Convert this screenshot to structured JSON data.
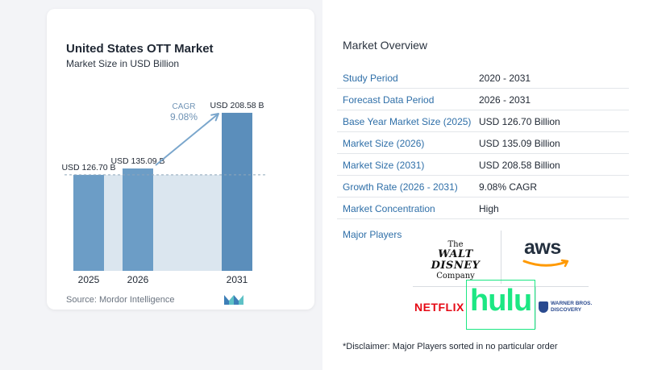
{
  "chart": {
    "title": "United States OTT Market",
    "subtitle": "Market Size in USD Billion",
    "source": "Source:  Mordor Intelligence",
    "cagr_label": "CAGR",
    "cagr_value": "9.08%"
  },
  "chart_data": {
    "type": "bar",
    "title": "United States OTT Market",
    "subtitle": "Market Size in USD Billion",
    "categories": [
      "2025",
      "2026",
      "2031"
    ],
    "values": [
      126.7,
      135.09,
      208.58
    ],
    "data_labels": [
      "USD 126.70 B",
      "USD 135.09 B",
      "USD 208.58 B"
    ],
    "annotations": [
      {
        "text": "CAGR",
        "value": "9.08%"
      }
    ],
    "colors": {
      "bar": "#6c9dc6",
      "bar_last": "#5b8ebb",
      "band": "#dbe6ef",
      "arrow": "#7aa6cc",
      "cagr_text": "#6f93b5"
    }
  },
  "overview": {
    "title": "Market Overview",
    "rows": [
      {
        "key": "Study Period",
        "value": "2020 - 2031"
      },
      {
        "key": "Forecast Data Period",
        "value": "2026 - 2031"
      },
      {
        "key": "Base Year Market Size (2025)",
        "value": "USD 126.70 Billion"
      },
      {
        "key": "Market Size (2026)",
        "value": "USD 135.09 Billion"
      },
      {
        "key": "Market Size (2031)",
        "value": "USD 208.58 Billion"
      },
      {
        "key": "Growth Rate (2026 - 2031)",
        "value": "9.08% CAGR"
      },
      {
        "key": "Market Concentration",
        "value": "High"
      }
    ]
  },
  "players": {
    "label": "Major Players",
    "logos": {
      "disney_l1": "The",
      "disney_l2": "WALT DISNEY",
      "disney_l3": "Company",
      "aws": "aws",
      "netflix": "NETFLIX",
      "hulu": "hulu",
      "wb_l1": "WARNER BROS.",
      "wb_l2": "DISCOVERY"
    }
  },
  "disclaimer": "*Disclaimer: Major Players sorted in no particular order"
}
